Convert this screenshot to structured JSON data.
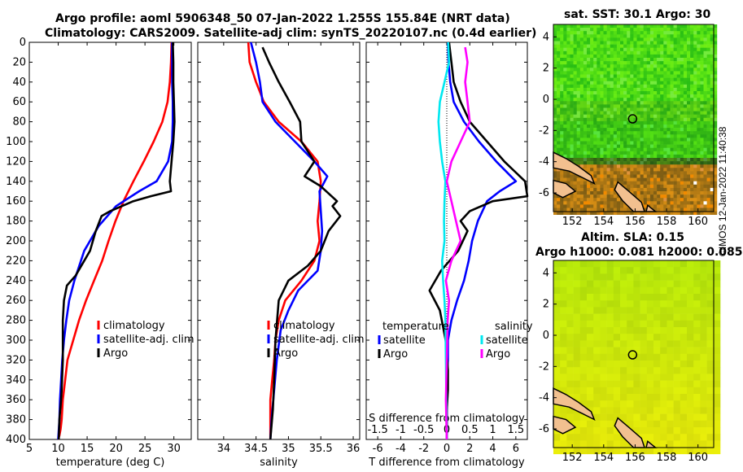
{
  "titles": {
    "line1": "Argo profile: aoml 5906348_50 07-Jan-2022 1.255S 155.84E (NRT data)",
    "line2": "Climatology: CARS2009. Satellite-adj clim: synTS_20220107.nc (0.4d earlier)"
  },
  "sst_title": "sat. SST: 30.1 Argo: 30",
  "sla_title1": "Altim. SLA: 0.15",
  "sla_title2": "Argo h1000: 0.081 h2000: 0.085",
  "sidebar_text": "©IMOS 12-Jan-2022 11:40:38",
  "colors": {
    "climatology": "#ff0000",
    "satellite": "#0000ff",
    "argo": "#000000",
    "sat_salt": "#00e8f0",
    "argo_salt": "#ff00ff",
    "land": "#f2c08f"
  },
  "chart_data": [
    {
      "type": "line",
      "name": "temperature",
      "xlabel": "temperature (deg C)",
      "ylabel": "",
      "xlim": [
        5,
        33
      ],
      "ylim": [
        0,
        400
      ],
      "y_reversed": true,
      "xticks": [
        "5",
        "10",
        "15",
        "20",
        "25",
        "30"
      ],
      "yticks": [
        "0",
        "20",
        "40",
        "60",
        "80",
        "100",
        "120",
        "140",
        "160",
        "180",
        "200",
        "220",
        "240",
        "260",
        "280",
        "300",
        "320",
        "340",
        "360",
        "380",
        "400"
      ],
      "legend": [
        "climatology",
        "satellite-adj. clim",
        "Argo"
      ],
      "series": [
        {
          "name": "climatology",
          "color": "#ff0000",
          "x": [
            29.6,
            29.5,
            29.3,
            28.9,
            28.0,
            26.5,
            24.8,
            23.0,
            21.3,
            19.9,
            18.7,
            17.6,
            16.2,
            14.8,
            13.6,
            12.6,
            11.6,
            11.2,
            10.8,
            10.6,
            10.4,
            10.2,
            10.0
          ],
          "y": [
            0,
            20,
            40,
            60,
            80,
            100,
            120,
            140,
            160,
            180,
            200,
            220,
            240,
            260,
            280,
            300,
            320,
            340,
            360,
            380,
            390,
            396,
            400
          ]
        },
        {
          "name": "satellite-adj. clim",
          "color": "#0000ff",
          "x": [
            29.7,
            29.7,
            29.7,
            29.8,
            29.8,
            29.7,
            29.0,
            27.0,
            24.0,
            20.0,
            17.0,
            14.5,
            12.8,
            11.9,
            11.4,
            11.0,
            10.7,
            10.5,
            10.3,
            10.2,
            10.0
          ],
          "y": [
            0,
            20,
            40,
            60,
            80,
            100,
            120,
            140,
            150,
            165,
            185,
            210,
            240,
            260,
            280,
            300,
            320,
            340,
            360,
            380,
            400
          ]
        },
        {
          "name": "Argo",
          "color": "#000000",
          "x": [
            29.8,
            29.9,
            29.9,
            30.0,
            30.1,
            29.9,
            29.6,
            29.3,
            29.5,
            26.0,
            23.0,
            19.0,
            17.5,
            16.5,
            15.5,
            13.0,
            11.5,
            11.0,
            10.8,
            10.8,
            10.6,
            10.5,
            10.2,
            10.1
          ],
          "y": [
            0,
            20,
            40,
            60,
            80,
            100,
            120,
            140,
            150,
            155,
            160,
            170,
            175,
            190,
            210,
            235,
            245,
            260,
            280,
            320,
            350,
            360,
            380,
            400
          ]
        }
      ]
    },
    {
      "type": "line",
      "name": "salinity",
      "xlabel": "salinity",
      "xlim": [
        33.6,
        36.1
      ],
      "ylim": [
        0,
        400
      ],
      "y_reversed": true,
      "xticks": [
        "34",
        "34.5",
        "35",
        "35.5",
        "36"
      ],
      "legend": [
        "climatology",
        "satellite-adj. clim",
        "Argo"
      ],
      "series": [
        {
          "name": "climatology",
          "color": "#ff0000",
          "x": [
            34.38,
            34.4,
            34.5,
            34.62,
            34.85,
            35.2,
            35.45,
            35.5,
            35.48,
            35.45,
            35.48,
            35.4,
            35.2,
            34.95,
            34.85,
            34.8,
            34.78,
            34.75,
            34.72,
            34.72
          ],
          "y": [
            0,
            20,
            40,
            60,
            80,
            100,
            120,
            140,
            160,
            180,
            200,
            220,
            240,
            260,
            280,
            300,
            320,
            340,
            360,
            400
          ]
        },
        {
          "name": "satellite-adj. clim",
          "color": "#0000ff",
          "x": [
            34.42,
            34.5,
            34.56,
            34.6,
            34.8,
            35.1,
            35.4,
            35.6,
            35.48,
            35.5,
            35.52,
            35.5,
            35.45,
            35.15,
            35.0,
            34.88,
            34.82,
            34.78,
            34.74,
            34.72
          ],
          "y": [
            0,
            20,
            40,
            60,
            80,
            100,
            120,
            135,
            150,
            170,
            190,
            210,
            230,
            250,
            270,
            290,
            320,
            350,
            380,
            400
          ]
        },
        {
          "name": "Argo",
          "color": "#000000",
          "x": [
            34.6,
            34.7,
            34.85,
            35.02,
            35.18,
            35.2,
            35.4,
            35.25,
            35.5,
            35.75,
            35.68,
            35.8,
            35.62,
            35.5,
            35.3,
            35.0,
            34.85,
            34.8,
            34.78,
            34.76,
            34.72
          ],
          "y": [
            5,
            20,
            40,
            60,
            80,
            100,
            120,
            135,
            145,
            160,
            165,
            175,
            190,
            210,
            225,
            240,
            260,
            300,
            340,
            370,
            400
          ]
        }
      ]
    },
    {
      "type": "line",
      "name": "differences",
      "xlabel": "T difference from climatology",
      "x2label": "S difference from climatology",
      "xlim": [
        -7,
        7
      ],
      "x2lim": [
        -1.75,
        1.75
      ],
      "ylim": [
        0,
        400
      ],
      "y_reversed": true,
      "xticks": [
        "-6",
        "-4",
        "-2",
        "0",
        "2",
        "4",
        "6"
      ],
      "x2ticks": [
        "-1.5",
        "-1",
        "-0.5",
        "0",
        "0.5",
        "1",
        "1.5"
      ],
      "legend_left_title": "temperature",
      "legend_right_title": "salinity",
      "legend_left": [
        "satellite",
        "Argo"
      ],
      "legend_right": [
        "satellite",
        "Argo"
      ],
      "series": [
        {
          "name": "T satellite",
          "axis": "T",
          "color": "#0000ff",
          "x": [
            0.1,
            0.15,
            0.3,
            0.6,
            1.5,
            2.8,
            4.3,
            6.0,
            4.6,
            3.5,
            2.7,
            2.2,
            1.9,
            1.5,
            0.9,
            0.4,
            0.1,
            0.1,
            0,
            0,
            0
          ],
          "y": [
            0,
            20,
            40,
            60,
            80,
            100,
            120,
            140,
            150,
            160,
            180,
            200,
            220,
            240,
            260,
            280,
            300,
            320,
            340,
            370,
            400
          ]
        },
        {
          "name": "T Argo",
          "axis": "T",
          "color": "#000000",
          "x": [
            0.2,
            0.4,
            0.6,
            1.2,
            2.0,
            3.5,
            5.0,
            6.8,
            7.0,
            4.0,
            2.0,
            1.2,
            1.8,
            1.0,
            -0.5,
            -1.5,
            -0.6,
            -0.1,
            0.1,
            0.1,
            0,
            0
          ],
          "y": [
            0,
            20,
            40,
            60,
            80,
            100,
            120,
            140,
            155,
            160,
            170,
            180,
            190,
            210,
            230,
            250,
            270,
            300,
            330,
            350,
            370,
            400
          ]
        },
        {
          "name": "S satellite",
          "axis": "S",
          "color": "#00e8f0",
          "x": [
            0.03,
            0.05,
            -0.05,
            -0.15,
            -0.18,
            -0.15,
            -0.1,
            -0.03,
            -0.05,
            -0.06,
            -0.05,
            -0.1,
            -0.08,
            -0.05,
            -0.03,
            -0.02,
            -0.01,
            0
          ],
          "y": [
            0,
            20,
            40,
            60,
            80,
            100,
            120,
            140,
            160,
            180,
            200,
            220,
            240,
            260,
            280,
            320,
            360,
            400
          ]
        },
        {
          "name": "S Argo",
          "axis": "S",
          "color": "#ff00ff",
          "x": [
            0.4,
            0.45,
            0.4,
            0.45,
            0.5,
            0.3,
            0.1,
            0,
            0.1,
            0.2,
            0.3,
            0.1,
            -0.02,
            0.05,
            0.02,
            0,
            -0.02,
            0
          ],
          "y": [
            5,
            20,
            40,
            60,
            80,
            100,
            120,
            140,
            160,
            180,
            200,
            220,
            240,
            260,
            280,
            320,
            360,
            400
          ]
        }
      ]
    },
    {
      "type": "heatmap",
      "name": "sst-map",
      "title": "sat. SST: 30.1 Argo: 30",
      "xlim": [
        150.8,
        161.0
      ],
      "ylim": [
        -7.2,
        4.8
      ],
      "xticks": [
        "152",
        "154",
        "156",
        "158",
        "160"
      ],
      "yticks": [
        "4",
        "2",
        "0",
        "-2",
        "-4",
        "-6"
      ],
      "argo_position": {
        "lon": 155.84,
        "lat": -1.255
      }
    },
    {
      "type": "heatmap",
      "name": "sla-map",
      "title": "Altim. SLA: 0.15",
      "xlim": [
        150.8,
        161.0
      ],
      "ylim": [
        -7.2,
        4.8
      ],
      "xticks": [
        "152",
        "154",
        "156",
        "158",
        "160"
      ],
      "yticks": [
        "4",
        "2",
        "0",
        "-2",
        "-4",
        "-6"
      ],
      "argo_position": {
        "lon": 155.84,
        "lat": -1.255
      }
    }
  ]
}
